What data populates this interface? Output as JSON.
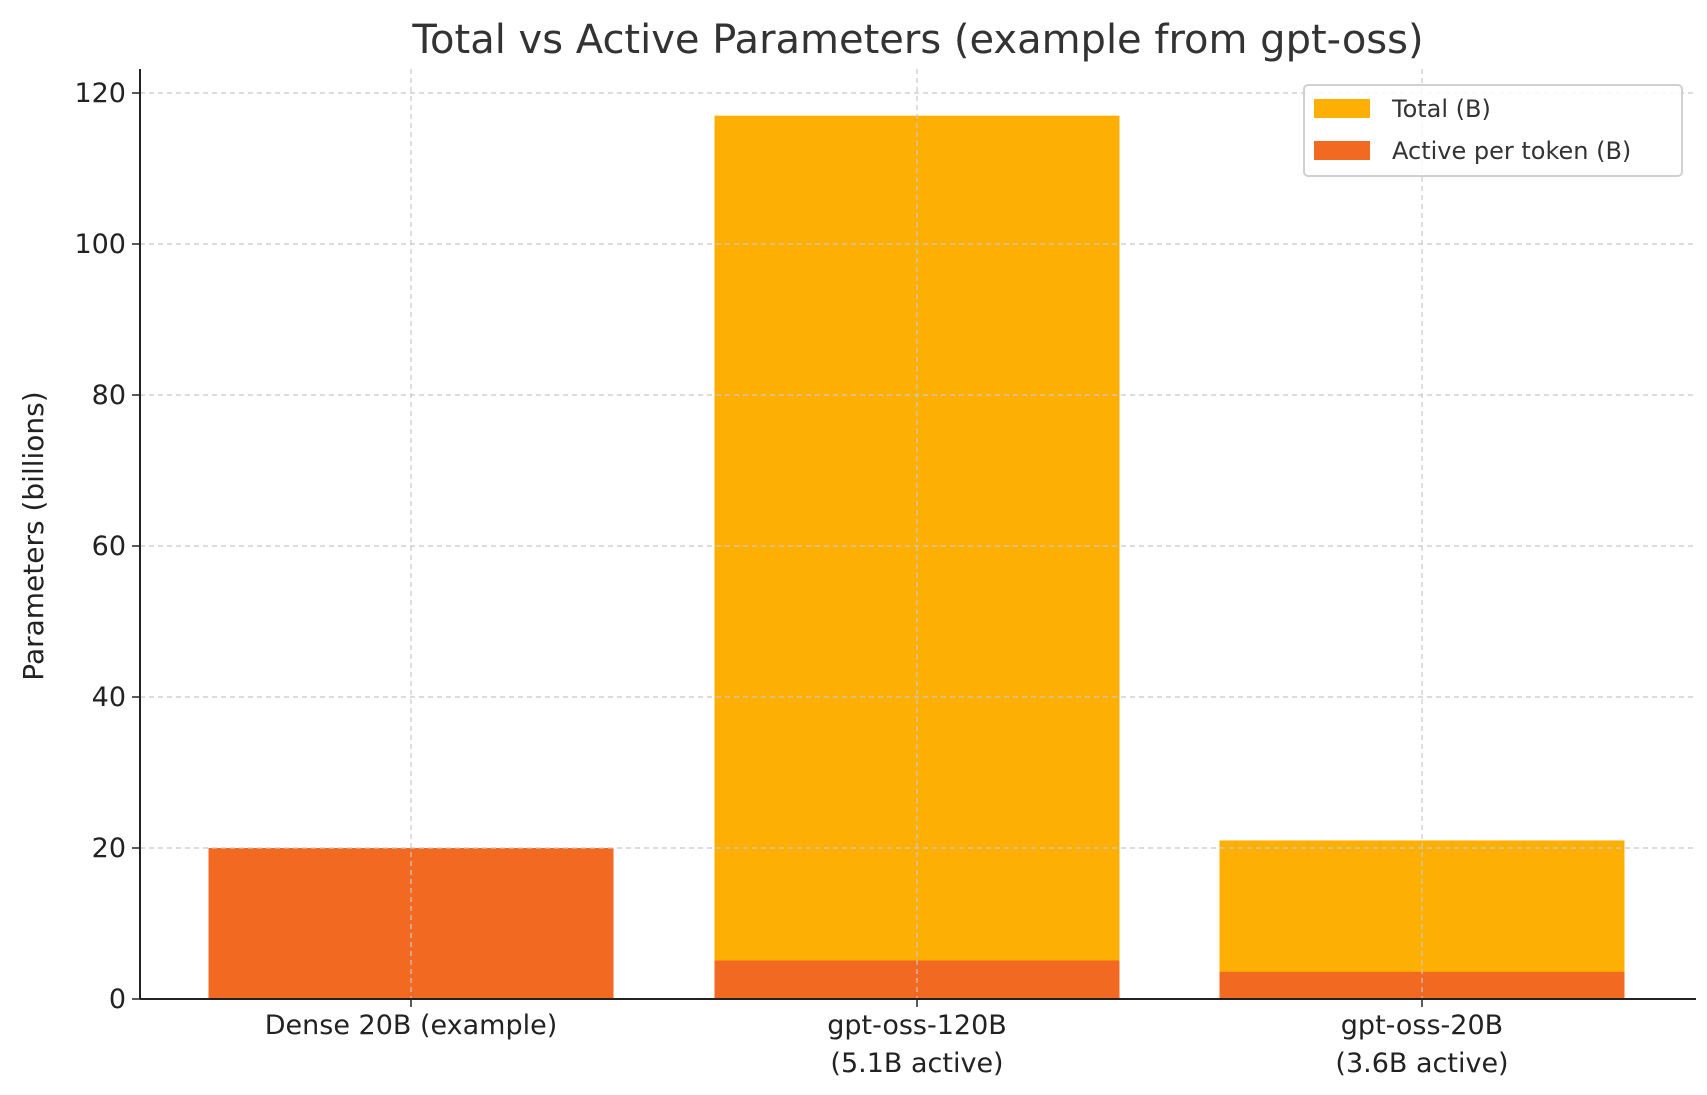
{
  "chart_data": {
    "type": "bar",
    "stacking": "overlay",
    "title": "Total vs Active Parameters (example from gpt-oss)",
    "xlabel": "",
    "ylabel": "Parameters (billions)",
    "ylim": [
      0,
      123
    ],
    "yticks": [
      0,
      20,
      40,
      60,
      80,
      100,
      120
    ],
    "grid": true,
    "legend_position": "top-right",
    "categories": [
      [
        "Dense 20B (example)"
      ],
      [
        "gpt-oss-120B",
        "(5.1B active)"
      ],
      [
        "gpt-oss-20B",
        "(3.6B active)"
      ]
    ],
    "series": [
      {
        "name": "Total (B)",
        "color": "#FDAF03",
        "values": [
          20,
          117,
          21
        ]
      },
      {
        "name": "Active per token (B)",
        "color": "#F26A22",
        "values": [
          20,
          5.1,
          3.6
        ]
      }
    ]
  }
}
